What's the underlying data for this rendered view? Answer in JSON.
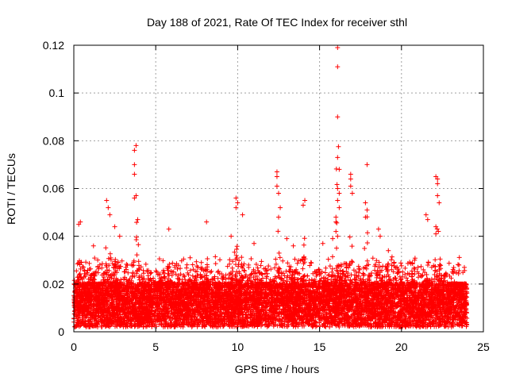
{
  "chart_data": {
    "type": "scatter",
    "title": "Day 188 of 2021, Rate Of TEC Index for receiver sthl",
    "xlabel": "GPS time / hours",
    "ylabel": "ROTI / TECUs",
    "xlim": [
      0,
      25
    ],
    "ylim": [
      0,
      0.12
    ],
    "x_ticks": [
      0,
      5,
      10,
      15,
      20,
      25
    ],
    "x_tick_labels": [
      "0",
      "5",
      "10",
      "15",
      "20",
      "25"
    ],
    "y_ticks": [
      0,
      0.02,
      0.04,
      0.06,
      0.08,
      0.1,
      0.12
    ],
    "y_tick_labels": [
      "0",
      "0.02",
      "0.04",
      "0.06",
      "0.08",
      "0.1",
      "0.12"
    ],
    "grid": true,
    "marker": "+",
    "color": "#ff0000",
    "series": [
      {
        "name": "ROTI",
        "x_range": [
          0,
          24
        ],
        "bulk_range": [
          0.002,
          0.02
        ],
        "notable_points": [
          {
            "x": 0.3,
            "y": 0.045
          },
          {
            "x": 0.4,
            "y": 0.046
          },
          {
            "x": 2.0,
            "y": 0.055
          },
          {
            "x": 2.1,
            "y": 0.052
          },
          {
            "x": 2.2,
            "y": 0.049
          },
          {
            "x": 3.7,
            "y": 0.076
          },
          {
            "x": 3.8,
            "y": 0.078
          },
          {
            "x": 3.7,
            "y": 0.07
          },
          {
            "x": 3.7,
            "y": 0.066
          },
          {
            "x": 3.8,
            "y": 0.057
          },
          {
            "x": 3.7,
            "y": 0.056
          },
          {
            "x": 3.9,
            "y": 0.047
          },
          {
            "x": 5.8,
            "y": 0.043
          },
          {
            "x": 8.1,
            "y": 0.046
          },
          {
            "x": 9.9,
            "y": 0.056
          },
          {
            "x": 10.0,
            "y": 0.054
          },
          {
            "x": 9.9,
            "y": 0.052
          },
          {
            "x": 10.3,
            "y": 0.049
          },
          {
            "x": 12.4,
            "y": 0.067
          },
          {
            "x": 12.4,
            "y": 0.065
          },
          {
            "x": 12.4,
            "y": 0.061
          },
          {
            "x": 12.5,
            "y": 0.058
          },
          {
            "x": 12.6,
            "y": 0.052
          },
          {
            "x": 12.5,
            "y": 0.048
          },
          {
            "x": 13.0,
            "y": 0.039
          },
          {
            "x": 14.1,
            "y": 0.055
          },
          {
            "x": 14.0,
            "y": 0.053
          },
          {
            "x": 16.1,
            "y": 0.119
          },
          {
            "x": 16.1,
            "y": 0.111
          },
          {
            "x": 16.1,
            "y": 0.09
          },
          {
            "x": 16.1,
            "y": 0.073
          },
          {
            "x": 16.2,
            "y": 0.068
          },
          {
            "x": 16.1,
            "y": 0.06
          },
          {
            "x": 16.2,
            "y": 0.058
          },
          {
            "x": 16.1,
            "y": 0.055
          },
          {
            "x": 16.2,
            "y": 0.052
          },
          {
            "x": 16.0,
            "y": 0.048
          },
          {
            "x": 16.0,
            "y": 0.046
          },
          {
            "x": 16.0,
            "y": 0.042
          },
          {
            "x": 16.1,
            "y": 0.04
          },
          {
            "x": 15.8,
            "y": 0.039
          },
          {
            "x": 16.9,
            "y": 0.066
          },
          {
            "x": 16.9,
            "y": 0.064
          },
          {
            "x": 16.9,
            "y": 0.061
          },
          {
            "x": 17.0,
            "y": 0.058
          },
          {
            "x": 17.9,
            "y": 0.07
          },
          {
            "x": 17.8,
            "y": 0.054
          },
          {
            "x": 17.9,
            "y": 0.051
          },
          {
            "x": 17.8,
            "y": 0.048
          },
          {
            "x": 18.7,
            "y": 0.04
          },
          {
            "x": 21.5,
            "y": 0.049
          },
          {
            "x": 21.6,
            "y": 0.047
          },
          {
            "x": 22.1,
            "y": 0.065
          },
          {
            "x": 22.2,
            "y": 0.064
          },
          {
            "x": 22.2,
            "y": 0.062
          },
          {
            "x": 22.2,
            "y": 0.057
          },
          {
            "x": 22.3,
            "y": 0.054
          },
          {
            "x": 22.1,
            "y": 0.044
          },
          {
            "x": 22.1,
            "y": 0.041
          },
          {
            "x": 1.2,
            "y": 0.036
          },
          {
            "x": 2.5,
            "y": 0.044
          },
          {
            "x": 2.8,
            "y": 0.04
          },
          {
            "x": 7.1,
            "y": 0.031
          },
          {
            "x": 9.6,
            "y": 0.04
          },
          {
            "x": 11.0,
            "y": 0.037
          },
          {
            "x": 13.4,
            "y": 0.036
          },
          {
            "x": 15.2,
            "y": 0.037
          },
          {
            "x": 18.6,
            "y": 0.043
          },
          {
            "x": 19.2,
            "y": 0.034
          },
          {
            "x": 20.8,
            "y": 0.03
          },
          {
            "x": 23.1,
            "y": 0.025
          }
        ]
      }
    ]
  }
}
